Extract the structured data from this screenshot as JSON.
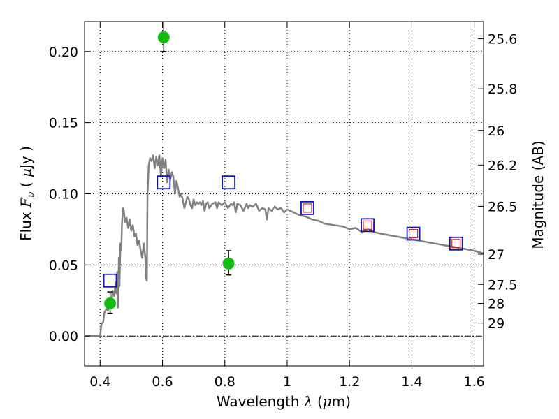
{
  "chart_data": {
    "type": "scatter",
    "title": "",
    "xlabel": {
      "prefix": "Wavelength  ",
      "symbol": "λ",
      "unit_open": " (",
      "unit_mu": "μ",
      "unit_close": "m)"
    },
    "ylabel": {
      "prefix": "Flux  ",
      "symbol": "F",
      "subscript": "ν",
      "unit_open": "  ( ",
      "unit_mu": "μ",
      "unit_close": "Jy )"
    },
    "y2label": "Magnitude (AB)",
    "xlim": [
      0.35,
      1.63
    ],
    "ylim": [
      -0.021,
      0.221
    ],
    "xticks": [
      {
        "value": 0.4,
        "label": "0.4"
      },
      {
        "value": 0.6,
        "label": "0.6"
      },
      {
        "value": 0.8,
        "label": "0.8"
      },
      {
        "value": 1.0,
        "label": "1"
      },
      {
        "value": 1.2,
        "label": "1.2"
      },
      {
        "value": 1.4,
        "label": "1.4"
      },
      {
        "value": 1.6,
        "label": "1.6"
      }
    ],
    "yticks": [
      {
        "value": 0.0,
        "label": "0.00"
      },
      {
        "value": 0.05,
        "label": "0.05"
      },
      {
        "value": 0.1,
        "label": "0.10"
      },
      {
        "value": 0.15,
        "label": "0.15"
      },
      {
        "value": 0.2,
        "label": "0.20"
      }
    ],
    "y2ticks": [
      {
        "value": 25.6,
        "label": "25.6"
      },
      {
        "value": 25.8,
        "label": "25.8"
      },
      {
        "value": 26.0,
        "label": "26"
      },
      {
        "value": 26.2,
        "label": "26.2"
      },
      {
        "value": 26.5,
        "label": "26.5"
      },
      {
        "value": 27.0,
        "label": "27"
      },
      {
        "value": 27.5,
        "label": "27.5"
      },
      {
        "value": 28.0,
        "label": "28"
      },
      {
        "value": 29.0,
        "label": "29"
      }
    ],
    "grid": true,
    "zero_line": true,
    "model_sed": {
      "color": "#808080",
      "x": [
        0.35,
        0.4,
        0.404,
        0.41,
        0.413,
        0.42,
        0.425,
        0.43,
        0.435,
        0.44,
        0.445,
        0.45,
        0.452,
        0.455,
        0.458,
        0.46,
        0.462,
        0.465,
        0.468,
        0.47,
        0.473,
        0.476,
        0.48,
        0.485,
        0.49,
        0.495,
        0.5,
        0.505,
        0.51,
        0.515,
        0.52,
        0.525,
        0.53,
        0.535,
        0.54,
        0.545,
        0.548,
        0.55,
        0.552,
        0.556,
        0.56,
        0.565,
        0.57,
        0.575,
        0.58,
        0.585,
        0.59,
        0.595,
        0.6,
        0.605,
        0.61,
        0.615,
        0.62,
        0.625,
        0.63,
        0.635,
        0.64,
        0.645,
        0.65,
        0.655,
        0.66,
        0.665,
        0.67,
        0.675,
        0.68,
        0.685,
        0.69,
        0.695,
        0.7,
        0.705,
        0.71,
        0.715,
        0.72,
        0.725,
        0.73,
        0.735,
        0.74,
        0.745,
        0.75,
        0.76,
        0.77,
        0.775,
        0.78,
        0.79,
        0.8,
        0.81,
        0.82,
        0.825,
        0.83,
        0.835,
        0.84,
        0.85,
        0.86,
        0.87,
        0.875,
        0.88,
        0.89,
        0.9,
        0.91,
        0.92,
        0.93,
        0.935,
        0.94,
        0.95,
        0.96,
        0.97,
        0.98,
        0.99,
        1.0,
        1.02,
        1.04,
        1.06,
        1.08,
        1.1,
        1.12,
        1.15,
        1.18,
        1.2,
        1.22,
        1.24,
        1.26,
        1.28,
        1.3,
        1.35,
        1.4,
        1.45,
        1.5,
        1.55,
        1.6,
        1.63
      ],
      "y": [
        0.0,
        0.0,
        0.008,
        0.01,
        0.016,
        0.019,
        0.018,
        0.024,
        0.02,
        0.032,
        0.028,
        0.038,
        0.03,
        0.045,
        0.02,
        0.055,
        0.035,
        0.065,
        0.06,
        0.078,
        0.09,
        0.088,
        0.08,
        0.083,
        0.076,
        0.082,
        0.074,
        0.078,
        0.07,
        0.072,
        0.064,
        0.067,
        0.06,
        0.055,
        0.065,
        0.055,
        0.04,
        0.039,
        0.1,
        0.12,
        0.125,
        0.123,
        0.127,
        0.118,
        0.126,
        0.12,
        0.127,
        0.112,
        0.125,
        0.118,
        0.124,
        0.108,
        0.117,
        0.11,
        0.115,
        0.112,
        0.1,
        0.109,
        0.104,
        0.098,
        0.1,
        0.096,
        0.09,
        0.094,
        0.098,
        0.096,
        0.092,
        0.09,
        0.096,
        0.092,
        0.094,
        0.093,
        0.094,
        0.092,
        0.095,
        0.088,
        0.093,
        0.094,
        0.09,
        0.093,
        0.094,
        0.09,
        0.094,
        0.092,
        0.094,
        0.09,
        0.093,
        0.092,
        0.094,
        0.087,
        0.093,
        0.092,
        0.088,
        0.093,
        0.09,
        0.092,
        0.091,
        0.093,
        0.088,
        0.09,
        0.089,
        0.082,
        0.09,
        0.088,
        0.091,
        0.089,
        0.09,
        0.087,
        0.089,
        0.087,
        0.085,
        0.084,
        0.082,
        0.081,
        0.079,
        0.078,
        0.077,
        0.075,
        0.076,
        0.073,
        0.075,
        0.073,
        0.072,
        0.07,
        0.068,
        0.066,
        0.064,
        0.062,
        0.06,
        0.058
      ]
    },
    "model_bandpass": {
      "marker": "open-square",
      "color": "#1111bb",
      "x": [
        0.432,
        0.604,
        0.812,
        1.065,
        1.258,
        1.405,
        1.542
      ],
      "y": [
        0.039,
        0.108,
        0.108,
        0.09,
        0.078,
        0.072,
        0.065
      ]
    },
    "model_bandpass_inner": {
      "marker": "open-square",
      "color": "#dd2222",
      "x": [
        1.065,
        1.258,
        1.405,
        1.542
      ],
      "y": [
        0.09,
        0.078,
        0.072,
        0.065
      ]
    },
    "observed": {
      "marker": "filled-circle",
      "color": "#11bb11",
      "x": [
        0.432,
        0.604,
        0.812
      ],
      "y": [
        0.023,
        0.21,
        0.051
      ],
      "yerr_low": [
        0.007,
        0.01,
        0.008
      ],
      "yerr_high": [
        0.008,
        0.014,
        0.009
      ]
    }
  }
}
